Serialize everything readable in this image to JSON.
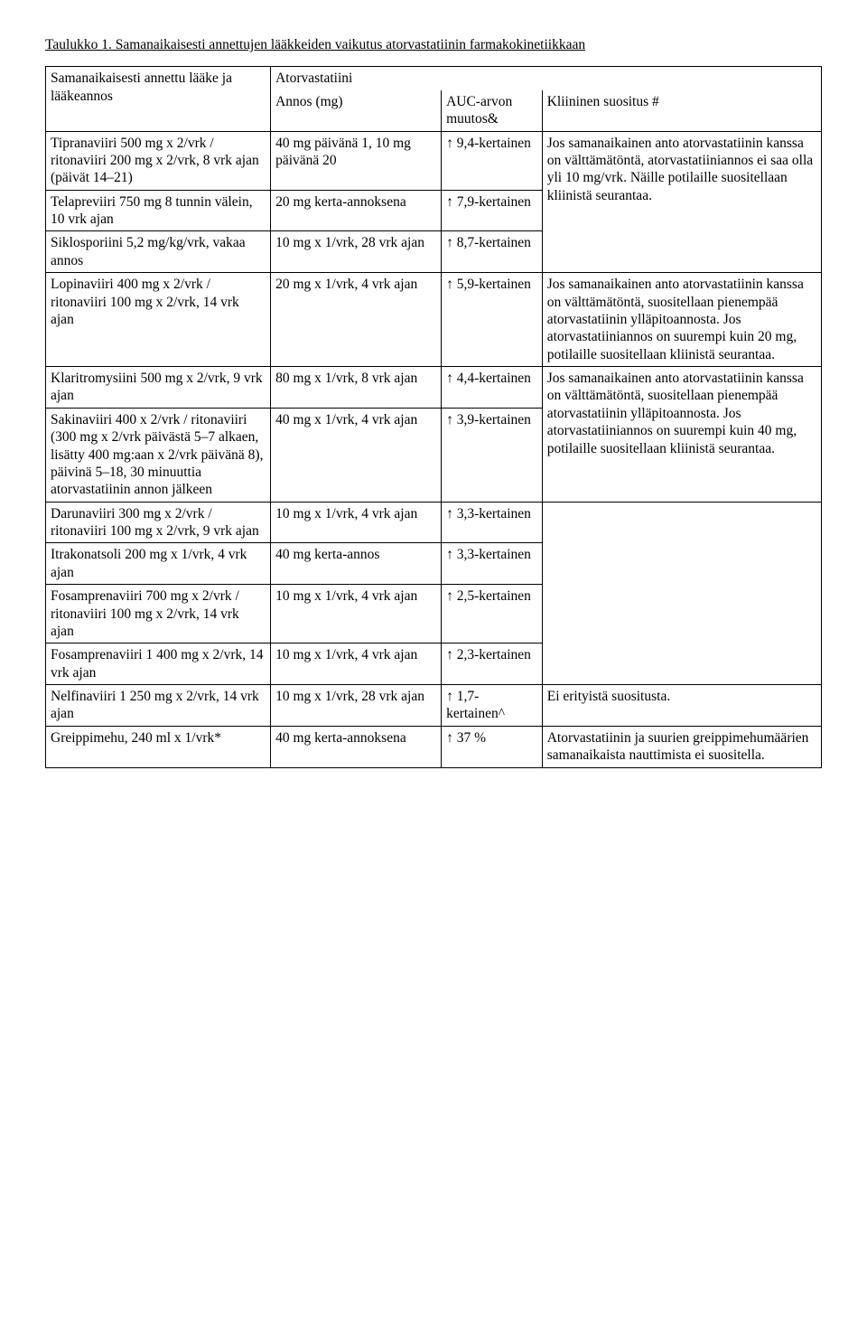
{
  "title": "Taulukko 1. Samanaikaisesti annettujen lääkkeiden vaikutus atorvastatiinin farmakokinetiikkaan",
  "header": {
    "col1": "Samanaikaisesti annettu lääke ja lääkeannos",
    "col2_top": "Atorvastatiini",
    "col2": "Annos (mg)",
    "col3": "AUC-arvon muutos&",
    "col4": "Kliininen suositus #"
  },
  "rows": {
    "r1": {
      "drug": "Tipranaviiri 500 mg x 2/vrk / ritonaviiri 200 mg x 2/vrk, 8 vrk ajan (päivät 14–21)",
      "dose": "40 mg päivänä 1, 10 mg päivänä 20",
      "auc": "↑ 9,4-kertainen",
      "rec": "Jos samanaikainen anto atorvastatiinin kanssa on välttämätöntä, atorvastatiiniannos ei saa olla yli 10 mg/vrk. Näille potilaille suositellaan kliinistä seurantaa."
    },
    "r2": {
      "drug": "Telapreviiri 750 mg 8 tunnin välein, 10 vrk ajan",
      "dose": "20 mg kerta-annoksena",
      "auc": "↑ 7,9-kertainen"
    },
    "r3": {
      "drug": "Siklosporiini 5,2 mg/kg/vrk, vakaa annos",
      "dose": "10 mg x 1/vrk, 28 vrk ajan",
      "auc": "↑ 8,7-kertainen"
    },
    "r4": {
      "drug": "Lopinaviiri 400 mg x 2/vrk / ritonaviiri 100 mg x 2/vrk, 14 vrk ajan",
      "dose": "20 mg x 1/vrk, 4 vrk ajan",
      "auc": "↑ 5,9-kertainen",
      "rec": "Jos samanaikainen anto atorvastatiinin kanssa on välttämätöntä, suositellaan pienempää atorvastatiinin ylläpitoannosta. Jos atorvastatiiniannos on suurempi kuin 20 mg, potilaille suositellaan kliinistä seurantaa."
    },
    "r5": {
      "drug": "Klaritromysiini 500 mg x 2/vrk, 9 vrk ajan",
      "dose": "80 mg x 1/vrk, 8 vrk ajan",
      "auc": "↑ 4,4-kertainen"
    },
    "r6": {
      "drug": "Sakinaviiri 400 x 2/vrk / ritonaviiri (300 mg x 2/vrk päivästä 5–7 alkaen, lisätty 400 mg:aan x 2/vrk päivänä 8), päivinä 5–18, 30 minuuttia atorvastatiinin annon jälkeen",
      "dose": "40 mg x 1/vrk, 4 vrk ajan",
      "auc": "↑ 3,9-kertainen",
      "rec": "Jos samanaikainen anto atorvastatiinin kanssa on välttämätöntä, suositellaan pienempää atorvastatiinin ylläpitoannosta. Jos atorvastatiiniannos on suurempi kuin 40 mg, potilaille suositellaan kliinistä seurantaa."
    },
    "r7": {
      "drug": "Darunaviiri 300 mg x 2/vrk / ritonaviiri 100 mg x 2/vrk, 9 vrk ajan",
      "dose": "10 mg x 1/vrk, 4 vrk ajan",
      "auc": "↑ 3,3-kertainen"
    },
    "r8": {
      "drug": "Itrakonatsoli 200 mg x 1/vrk, 4 vrk ajan",
      "dose": "40 mg kerta-annos",
      "auc": "↑ 3,3-kertainen"
    },
    "r9": {
      "drug": "Fosamprenaviiri 700 mg x 2/vrk / ritonaviiri 100 mg x 2/vrk, 14 vrk ajan",
      "dose": "10 mg x 1/vrk, 4 vrk ajan",
      "auc": "↑ 2,5-kertainen"
    },
    "r10": {
      "drug": "Fosamprenaviiri 1 400 mg x 2/vrk, 14 vrk ajan",
      "dose": "10 mg x 1/vrk, 4 vrk ajan",
      "auc": "↑ 2,3-kertainen"
    },
    "r11": {
      "drug": "Nelfinaviiri 1 250 mg x 2/vrk, 14 vrk ajan",
      "dose": "10 mg x 1/vrk, 28 vrk ajan",
      "auc": "↑ 1,7-kertainen^",
      "rec": "Ei erityistä suositusta."
    },
    "r12": {
      "drug": "Greippimehu, 240 ml x 1/vrk*",
      "dose": "40 mg kerta-annoksena",
      "auc": "↑ 37 %",
      "rec": "Atorvastatiinin ja suurien greippimehumäärien samanaikaista nauttimista ei suositella."
    }
  }
}
